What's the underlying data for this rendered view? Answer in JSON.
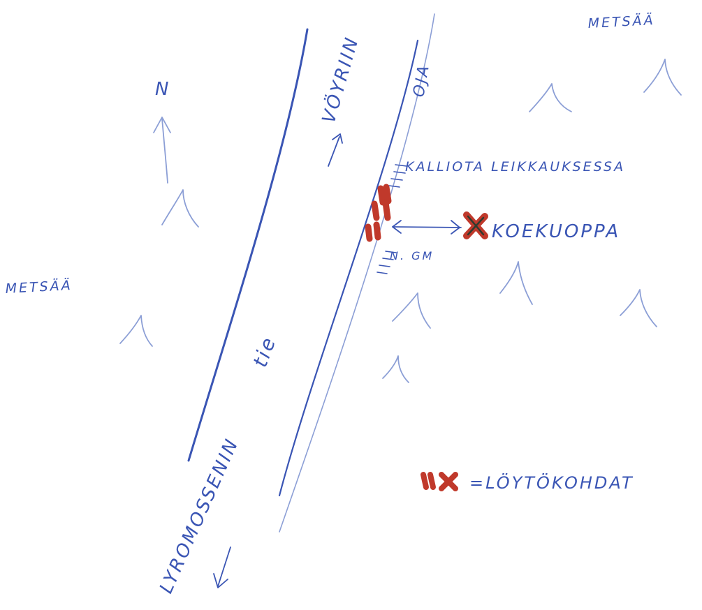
{
  "map": {
    "labels": {
      "metsa_top_right": "METSÄÄ",
      "metsa_left": "METSÄÄ",
      "north": "N",
      "voyrin": "VÖYRIIN",
      "oja": "OJA",
      "kalliota": "KALLIOTA LEIKKAUKSESSA",
      "koekuoppa": "KOEKUOPPA",
      "ngm": "N. GM",
      "tie": "tie",
      "road_name": "LYROMOSSENIN"
    },
    "legend": {
      "finds_label": "=LÖYTÖKOHDAT"
    },
    "colors": {
      "ink": "#3a55b4",
      "ink_light": "#8c9fd6",
      "marker_red": "#c0392b",
      "marker_dark": "#2f3b2f",
      "paper": "#ffffff"
    },
    "icons": {
      "tree": "tree-symbol-icon",
      "north_arrow": "north-arrow-icon",
      "find_marker": "find-marker-icon",
      "test_pit": "test-pit-cross-icon"
    }
  }
}
